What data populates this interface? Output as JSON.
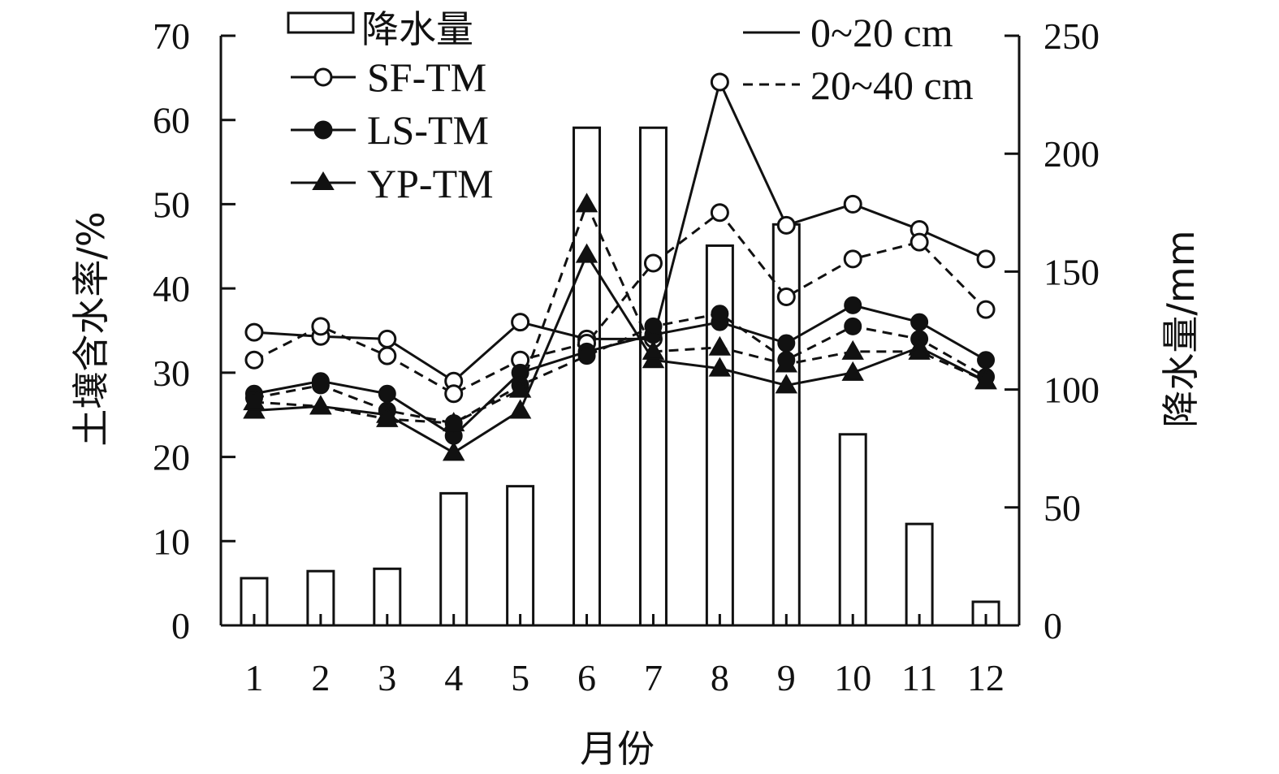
{
  "chart_data": {
    "type": "bar+line",
    "categories": [
      "1",
      "2",
      "3",
      "4",
      "5",
      "6",
      "7",
      "8",
      "9",
      "10",
      "11",
      "12"
    ],
    "xlabel": "月份",
    "ylabel_left": "土壤含水率/%",
    "ylabel_right": "降水量/mm",
    "ylim_left": [
      0,
      70
    ],
    "yticks_left": [
      "0",
      "10",
      "20",
      "30",
      "40",
      "50",
      "60",
      "70"
    ],
    "ylim_right": [
      0,
      250
    ],
    "yticks_right": [
      "0",
      "50",
      "100",
      "150",
      "200",
      "250"
    ],
    "grid": false,
    "legend_placement": "top",
    "legend": {
      "precip": "降水量",
      "sf": "SF-TM",
      "ls": "LS-TM",
      "yp": "YP-TM",
      "depth1": "0~20 cm",
      "depth2": "20~40 cm"
    },
    "precipitation": [
      20,
      23,
      24,
      56,
      59,
      211,
      211,
      161,
      170,
      81,
      43,
      10
    ],
    "series": [
      {
        "name": "SF-TM",
        "depth": "0~20 cm",
        "marker": "open-circle",
        "values": [
          34.8,
          34.3,
          34.0,
          29.0,
          36.0,
          34.0,
          34.0,
          64.5,
          47.5,
          50.0,
          47.0,
          43.5
        ]
      },
      {
        "name": "SF-TM",
        "depth": "20~40 cm",
        "marker": "open-circle",
        "values": [
          31.5,
          35.5,
          32.0,
          27.5,
          31.5,
          33.5,
          43.0,
          49.0,
          39.0,
          43.5,
          45.5,
          37.5
        ]
      },
      {
        "name": "LS-TM",
        "depth": "0~20 cm",
        "marker": "filled-circle",
        "values": [
          27.5,
          29.0,
          27.5,
          22.5,
          30.0,
          32.5,
          34.5,
          36.0,
          33.5,
          38.0,
          36.0,
          31.5
        ]
      },
      {
        "name": "LS-TM",
        "depth": "20~40 cm",
        "marker": "filled-circle",
        "values": [
          27.0,
          28.5,
          25.5,
          24.0,
          28.5,
          32.0,
          35.5,
          37.0,
          31.5,
          35.5,
          34.0,
          29.5
        ]
      },
      {
        "name": "YP-TM",
        "depth": "0~20 cm",
        "marker": "filled-triangle",
        "values": [
          25.5,
          26.0,
          25.0,
          20.5,
          25.5,
          44.0,
          31.5,
          30.5,
          28.5,
          30.0,
          33.0,
          29.0
        ]
      },
      {
        "name": "YP-TM",
        "depth": "20~40 cm",
        "marker": "filled-triangle",
        "values": [
          26.5,
          26.0,
          24.5,
          24.0,
          28.0,
          50.0,
          32.5,
          33.0,
          31.0,
          32.5,
          32.5,
          29.0
        ]
      }
    ]
  }
}
